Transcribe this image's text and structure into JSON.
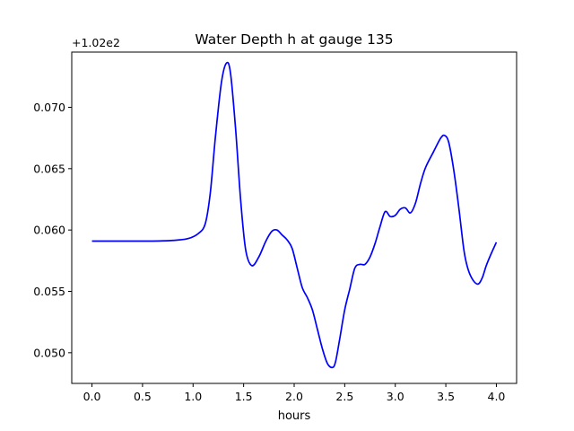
{
  "chart_data": {
    "type": "line",
    "title": "Water Depth h at gauge 135",
    "xlabel": "hours",
    "ylabel": "",
    "offset_text": "+1.02e2",
    "xlim": [
      -0.2,
      4.2
    ],
    "ylim": [
      0.0475,
      0.0745
    ],
    "xticks": [
      0.0,
      0.5,
      1.0,
      1.5,
      2.0,
      2.5,
      3.0,
      3.5,
      4.0
    ],
    "xtick_labels": [
      "0.0",
      "0.5",
      "1.0",
      "1.5",
      "2.0",
      "2.5",
      "3.0",
      "3.5",
      "4.0"
    ],
    "yticks": [
      0.05,
      0.055,
      0.06,
      0.065,
      0.07
    ],
    "ytick_labels": [
      "0.050",
      "0.055",
      "0.060",
      "0.065",
      "0.070"
    ],
    "grid": false,
    "legend": "none",
    "colors": {
      "line": "#0000ff",
      "axes": "#000000",
      "background": "#ffffff"
    },
    "series": [
      {
        "x": [
          0.0,
          0.3,
          0.6,
          0.8,
          0.95,
          1.05,
          1.12,
          1.17,
          1.22,
          1.28,
          1.33,
          1.37,
          1.42,
          1.47,
          1.52,
          1.58,
          1.65,
          1.72,
          1.78,
          1.83,
          1.88,
          1.93,
          1.98,
          2.03,
          2.08,
          2.13,
          2.18,
          2.23,
          2.28,
          2.33,
          2.38,
          2.41,
          2.45,
          2.5,
          2.55,
          2.6,
          2.65,
          2.7,
          2.75,
          2.8,
          2.85,
          2.9,
          2.95,
          3.0,
          3.05,
          3.1,
          3.15,
          3.2,
          3.25,
          3.3,
          3.38,
          3.45,
          3.49,
          3.53,
          3.58,
          3.63,
          3.68,
          3.72,
          3.77,
          3.82,
          3.86,
          3.9,
          3.95,
          4.0
        ],
        "y": [
          0.0591,
          0.0591,
          0.0591,
          0.05915,
          0.0593,
          0.0597,
          0.0605,
          0.063,
          0.0675,
          0.072,
          0.0736,
          0.0728,
          0.0683,
          0.0625,
          0.0584,
          0.0571,
          0.0578,
          0.0591,
          0.0599,
          0.06,
          0.0596,
          0.0592,
          0.0585,
          0.0569,
          0.0553,
          0.0545,
          0.0535,
          0.0519,
          0.0503,
          0.0491,
          0.0488,
          0.0493,
          0.0511,
          0.0535,
          0.0552,
          0.0569,
          0.0572,
          0.0572,
          0.0578,
          0.0589,
          0.0603,
          0.0615,
          0.0611,
          0.0612,
          0.0617,
          0.0618,
          0.0614,
          0.0622,
          0.0638,
          0.0651,
          0.0664,
          0.0675,
          0.0677,
          0.0671,
          0.0648,
          0.0617,
          0.0583,
          0.0568,
          0.0559,
          0.0556,
          0.0561,
          0.0571,
          0.0581,
          0.059
        ]
      }
    ]
  }
}
